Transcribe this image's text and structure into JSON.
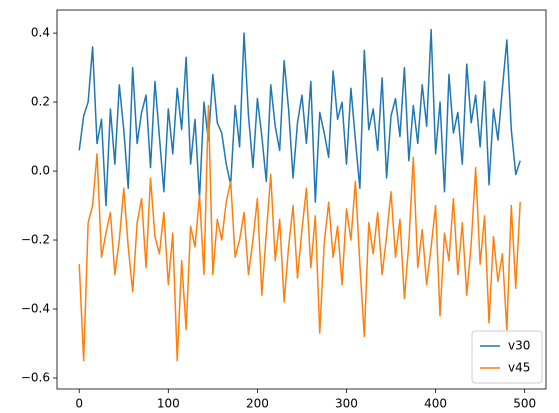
{
  "chart_data": {
    "type": "line",
    "x": [
      0,
      5,
      10,
      15,
      20,
      25,
      30,
      35,
      40,
      45,
      50,
      55,
      60,
      65,
      70,
      75,
      80,
      85,
      90,
      95,
      100,
      105,
      110,
      115,
      120,
      125,
      130,
      135,
      140,
      145,
      150,
      155,
      160,
      165,
      170,
      175,
      180,
      185,
      190,
      195,
      200,
      205,
      210,
      215,
      220,
      225,
      230,
      235,
      240,
      245,
      250,
      255,
      260,
      265,
      270,
      275,
      280,
      285,
      290,
      295,
      300,
      305,
      310,
      315,
      320,
      325,
      330,
      335,
      340,
      345,
      350,
      355,
      360,
      365,
      370,
      375,
      380,
      385,
      390,
      395,
      400,
      405,
      410,
      415,
      420,
      425,
      430,
      435,
      440,
      445,
      450,
      455,
      460,
      465,
      470,
      475,
      480,
      485,
      490,
      495
    ],
    "series": [
      {
        "name": "v30",
        "color": "#1f77b4",
        "values": [
          0.06,
          0.16,
          0.2,
          0.36,
          0.08,
          0.15,
          -0.1,
          0.18,
          0.02,
          0.25,
          0.12,
          -0.05,
          0.3,
          0.08,
          0.17,
          0.22,
          0.01,
          0.26,
          0.1,
          -0.06,
          0.18,
          0.05,
          0.24,
          0.12,
          0.33,
          0.02,
          0.15,
          -0.08,
          0.2,
          0.09,
          0.28,
          0.14,
          0.11,
          0.02,
          -0.04,
          0.19,
          0.07,
          0.4,
          0.16,
          0.01,
          0.21,
          0.1,
          -0.03,
          0.25,
          0.13,
          0.06,
          0.32,
          0.18,
          -0.02,
          0.14,
          0.22,
          0.08,
          0.26,
          -0.09,
          0.17,
          0.11,
          0.04,
          0.29,
          0.15,
          0.2,
          0.02,
          0.24,
          0.09,
          -0.05,
          0.35,
          0.12,
          0.18,
          0.06,
          0.27,
          -0.02,
          0.16,
          0.21,
          0.1,
          0.3,
          0.03,
          0.19,
          0.08,
          0.25,
          0.13,
          0.41,
          0.05,
          0.2,
          -0.06,
          0.28,
          0.11,
          0.17,
          0.02,
          0.31,
          0.14,
          0.22,
          0.07,
          0.26,
          -0.04,
          0.18,
          0.09,
          0.24,
          0.38,
          0.12,
          -0.01,
          0.03
        ]
      },
      {
        "name": "v45",
        "color": "#ff7f0e",
        "values": [
          -0.27,
          -0.55,
          -0.15,
          -0.1,
          0.05,
          -0.25,
          -0.18,
          -0.12,
          -0.3,
          -0.2,
          -0.05,
          -0.22,
          -0.35,
          -0.15,
          -0.08,
          -0.28,
          -0.02,
          -0.19,
          -0.24,
          -0.12,
          -0.33,
          -0.18,
          -0.55,
          -0.26,
          -0.46,
          -0.16,
          -0.22,
          -0.07,
          -0.3,
          0.19,
          -0.3,
          -0.14,
          -0.2,
          -0.09,
          -0.03,
          -0.25,
          -0.2,
          -0.12,
          -0.3,
          -0.2,
          -0.08,
          -0.36,
          -0.18,
          -0.01,
          -0.26,
          -0.14,
          -0.38,
          -0.22,
          -0.1,
          -0.31,
          -0.17,
          -0.05,
          -0.28,
          -0.13,
          -0.47,
          -0.21,
          -0.09,
          -0.25,
          -0.16,
          -0.33,
          -0.11,
          -0.2,
          -0.03,
          -0.27,
          -0.48,
          -0.15,
          -0.24,
          -0.12,
          -0.3,
          -0.19,
          -0.06,
          -0.25,
          -0.14,
          -0.37,
          -0.21,
          0.04,
          -0.28,
          -0.17,
          -0.33,
          -0.22,
          -0.1,
          -0.42,
          -0.18,
          -0.26,
          -0.08,
          -0.3,
          -0.15,
          -0.36,
          -0.21,
          0.01,
          -0.27,
          -0.13,
          -0.44,
          -0.19,
          -0.32,
          -0.24,
          -0.46,
          -0.1,
          -0.34,
          -0.09
        ]
      }
    ],
    "xlim": [
      -24.95,
      523.95
    ],
    "xticks": [
      0,
      100,
      200,
      300,
      400,
      500
    ],
    "ylim": [
      -0.632,
      0.467
    ],
    "yticks": [
      {
        "value": -0.6,
        "label": "−0.6"
      },
      {
        "value": -0.4,
        "label": "−0.4"
      },
      {
        "value": -0.2,
        "label": "−0.2"
      },
      {
        "value": 0,
        "label": "0.0"
      },
      0.2,
      0.4
    ],
    "legend": "lower right"
  }
}
